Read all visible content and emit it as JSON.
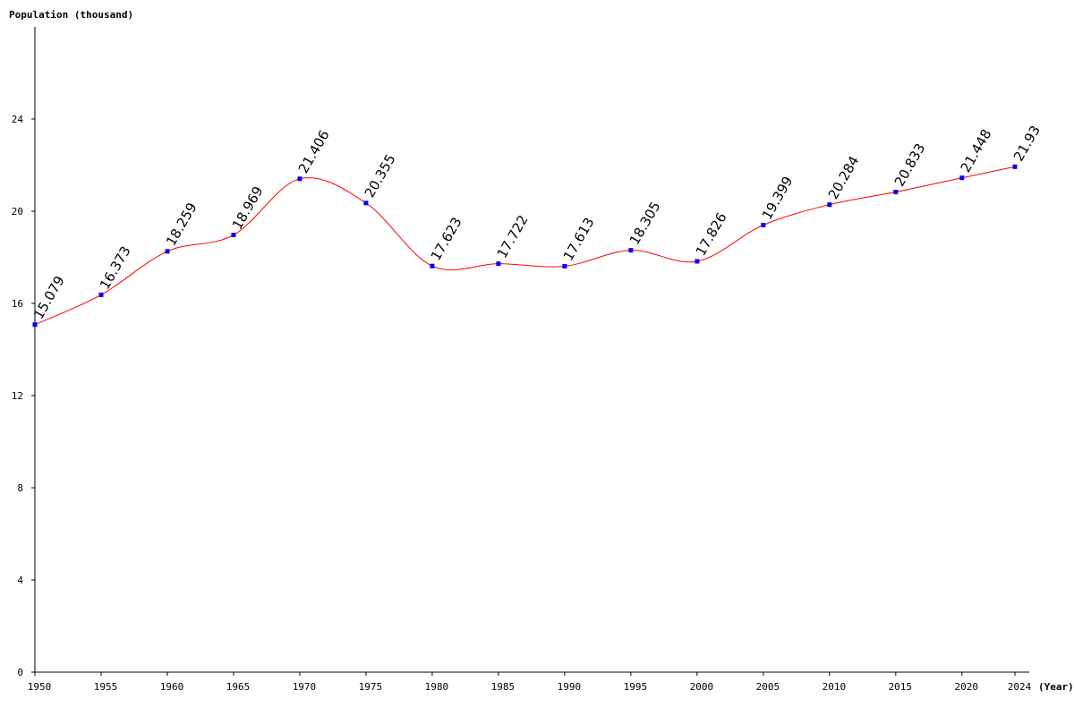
{
  "chart_data": {
    "type": "line",
    "ylabel": "Population (thousand)",
    "xlabel": "(Year)",
    "x": [
      1950,
      1955,
      1960,
      1965,
      1970,
      1975,
      1980,
      1985,
      1990,
      1995,
      2000,
      2005,
      2010,
      2015,
      2020,
      2024
    ],
    "x_tick_labels": [
      "1950",
      "1955",
      "1960",
      "1965",
      "1970",
      "1975",
      "1980",
      "1985",
      "1990",
      "1995",
      "2000",
      "2005",
      "2010",
      "2015",
      "2020",
      "2024"
    ],
    "series": [
      {
        "values": [
          15.079,
          16.373,
          18.259,
          18.969,
          21.406,
          20.355,
          17.623,
          17.722,
          17.613,
          18.305,
          17.826,
          19.399,
          20.284,
          20.833,
          21.448,
          21.93
        ],
        "labels": [
          "15.079",
          "16.373",
          "18.259",
          "18.969",
          "21.406",
          "20.355",
          "17.623",
          "17.722",
          "17.613",
          "18.305",
          "17.826",
          "19.399",
          "20.284",
          "20.833",
          "21.448",
          "21.93"
        ]
      }
    ],
    "yticks": [
      0,
      4,
      8,
      12,
      16,
      20,
      24
    ],
    "y_tick_labels": [
      "0",
      "4",
      "8",
      "12",
      "16",
      "20",
      "24"
    ],
    "ylim": [
      0,
      28
    ],
    "xlim": [
      1950,
      2024
    ],
    "grid": false,
    "colors": {
      "line": "#ff0000",
      "marker": "#0000ff",
      "axis": "#000000"
    }
  }
}
